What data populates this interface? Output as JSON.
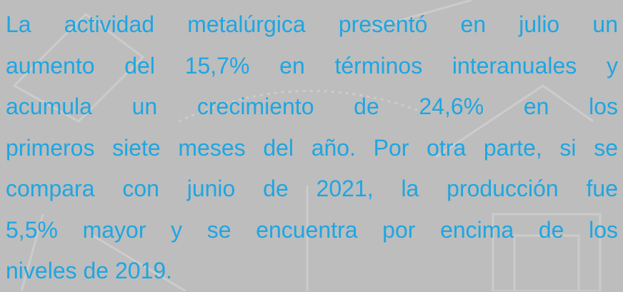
{
  "paragraph": {
    "lines": [
      "La actividad metalúrgica presentó en julio un",
      "aumento del 15,7% en términos interanuales y",
      "acumula un crecimiento de 24,6% en los",
      "primeros siete meses del año. Por otra parte, si se",
      "compara con junio de 2021, la producción fue",
      "5,5% mayor y se encuentra por encima de los",
      "niveles de 2019."
    ]
  }
}
